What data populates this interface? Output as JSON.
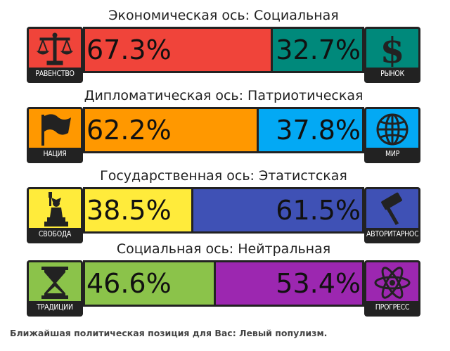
{
  "chart_data": [
    {
      "type": "bar",
      "title": "Экономическая ось: Социальная",
      "left_label": "РАВЕНСТВО",
      "right_label": "РЫНОК",
      "left_value": 67.3,
      "right_value": 32.7,
      "left_text": "67.3%",
      "right_text": "32.7%",
      "left_color": "#f0443a",
      "right_color": "#00897b",
      "left_icon": "scales-icon",
      "right_icon": "dollar-icon"
    },
    {
      "type": "bar",
      "title": "Дипломатическая ось: Патриотическая",
      "left_label": "НАЦИЯ",
      "right_label": "МИР",
      "left_value": 62.2,
      "right_value": 37.8,
      "left_text": "62.2%",
      "right_text": "37.8%",
      "left_color": "#ff9800",
      "right_color": "#03a9f4",
      "left_icon": "flag-icon",
      "right_icon": "globe-icon"
    },
    {
      "type": "bar",
      "title": "Государственная ось: Этатистская",
      "left_label": "СВОБОДА",
      "right_label": "АВТОРИТАРНОСТЬ",
      "left_value": 38.5,
      "right_value": 61.5,
      "left_text": "38.5%",
      "right_text": "61.5%",
      "left_color": "#ffeb3b",
      "right_color": "#3f51b5",
      "left_icon": "statue-of-liberty-icon",
      "right_icon": "gavel-icon"
    },
    {
      "type": "bar",
      "title": "Социальная ось: Нейтральная",
      "left_label": "ТРАДИЦИИ",
      "right_label": "ПРОГРЕСС",
      "left_value": 46.6,
      "right_value": 53.4,
      "left_text": "46.6%",
      "right_text": "53.4%",
      "left_color": "#8bc34a",
      "right_color": "#9c27b0",
      "left_icon": "hourglass-icon",
      "right_icon": "atom-icon"
    }
  ],
  "footer": "Ближайшая политическая позиция для Вас: Левый популизм."
}
